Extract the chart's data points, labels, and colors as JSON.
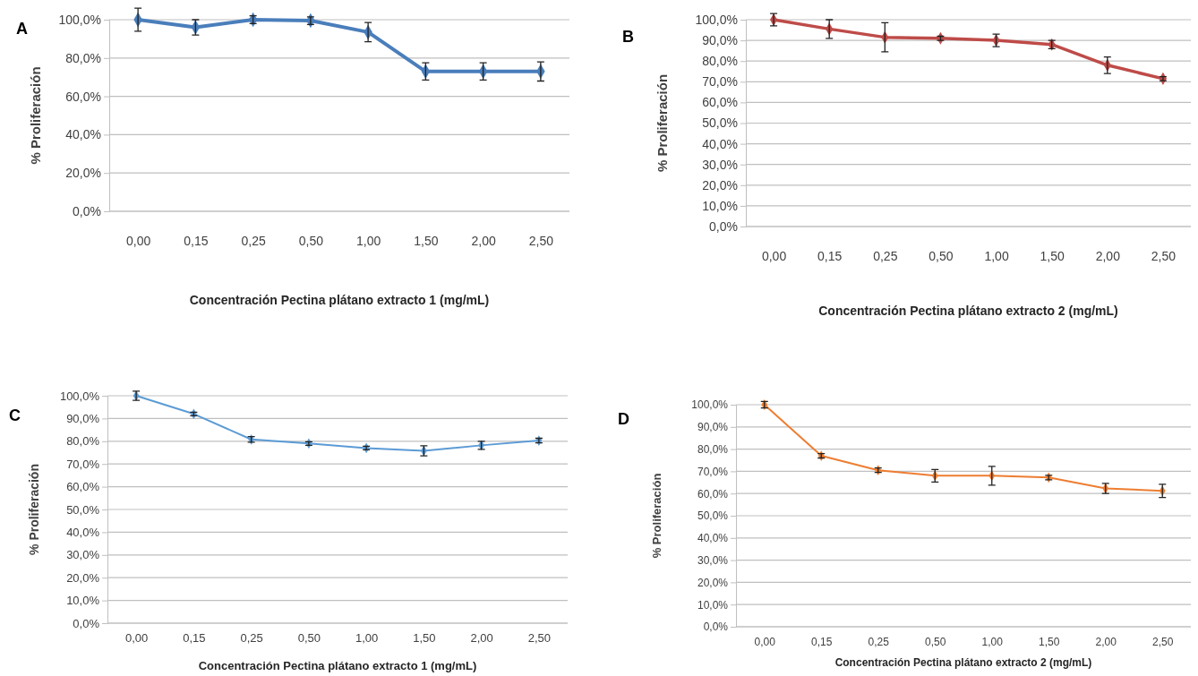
{
  "chart_data": [
    {
      "type": "line",
      "title": "A",
      "xlabel": "Concentración Pectina plátano  extracto 1 (mg/mL)",
      "ylabel": "% Proliferación",
      "categories": [
        "0,00",
        "0,15",
        "0,25",
        "0,50",
        "1,00",
        "1,50",
        "2,00",
        "2,50"
      ],
      "series": [
        {
          "color": "#4a7ebb",
          "values": [
            100,
            96,
            100,
            99.5,
            93.5,
            73,
            73,
            73
          ],
          "errors": [
            6,
            4,
            2,
            2,
            5,
            4.5,
            4.5,
            5
          ]
        }
      ],
      "ylim": [
        0,
        100
      ],
      "yticks": [
        {
          "value": 0,
          "label": "0,0%"
        },
        {
          "value": 20,
          "label": "20,0%"
        },
        {
          "value": 40,
          "label": "40,0%"
        },
        {
          "value": 60,
          "label": "60,0%"
        },
        {
          "value": 80,
          "label": "80,0%"
        },
        {
          "value": 100,
          "label": "100,0%"
        }
      ],
      "grid": "y",
      "marker": "diamond",
      "line_style": "solid"
    },
    {
      "type": "line",
      "title": "B",
      "xlabel": "Concentración Pectina plátano  extracto 2 (mg/mL)",
      "ylabel": "% Proliferación",
      "categories": [
        "0,00",
        "0,15",
        "0,25",
        "0,50",
        "1,00",
        "1,50",
        "2,00",
        "2,50"
      ],
      "series": [
        {
          "color": "#be4b48",
          "values": [
            100,
            95.5,
            91.5,
            91,
            90,
            88,
            78,
            71.5
          ],
          "errors": [
            3,
            4.5,
            7,
            1,
            3,
            2,
            4,
            1
          ]
        }
      ],
      "ylim": [
        0,
        100
      ],
      "yticks": [
        {
          "value": 0,
          "label": "0,0%"
        },
        {
          "value": 10,
          "label": "10,0%"
        },
        {
          "value": 20,
          "label": "20,0%"
        },
        {
          "value": 30,
          "label": "30,0%"
        },
        {
          "value": 40,
          "label": "40,0%"
        },
        {
          "value": 50,
          "label": "50,0%"
        },
        {
          "value": 60,
          "label": "60,0%"
        },
        {
          "value": 70,
          "label": "70,0%"
        },
        {
          "value": 80,
          "label": "80,0%"
        },
        {
          "value": 90,
          "label": "90,0%"
        },
        {
          "value": 100,
          "label": "100,0%"
        }
      ],
      "grid": "y",
      "marker": "diamond",
      "line_style": "solid"
    },
    {
      "type": "line",
      "title": "C",
      "xlabel": "Concentración  Pectina plátano  extracto 1 (mg/mL)",
      "ylabel": "% Proliferación",
      "categories": [
        "0,00",
        "0,15",
        "0,25",
        "0,50",
        "1,00",
        "1,50",
        "2,00",
        "2,50"
      ],
      "series": [
        {
          "color": "#5b9bd5",
          "values": [
            100,
            92,
            80.8,
            79,
            77,
            75.8,
            78.2,
            80.3
          ],
          "errors": [
            2,
            0.8,
            1.2,
            0.8,
            0.8,
            2.2,
            1.8,
            1
          ]
        }
      ],
      "ylim": [
        0,
        100
      ],
      "yticks": [
        {
          "value": 0,
          "label": "0,0%"
        },
        {
          "value": 10,
          "label": "10,0%"
        },
        {
          "value": 20,
          "label": "20,0%"
        },
        {
          "value": 30,
          "label": "30,0%"
        },
        {
          "value": 40,
          "label": "40,0%"
        },
        {
          "value": 50,
          "label": "50,0%"
        },
        {
          "value": 60,
          "label": "60,0%"
        },
        {
          "value": 70,
          "label": "70,0%"
        },
        {
          "value": 80,
          "label": "80,0%"
        },
        {
          "value": 90,
          "label": "90,0%"
        },
        {
          "value": 100,
          "label": "100,0%"
        }
      ],
      "grid": "y",
      "marker": "diamond",
      "line_style": "solid"
    },
    {
      "type": "line",
      "title": "D",
      "xlabel": "Concentración  Pectina plátano  extracto 2 (mg/mL)",
      "ylabel": "% Proliferación",
      "categories": [
        "0,00",
        "0,15",
        "0,25",
        "0,50",
        "1,00",
        "1,50",
        "2,00",
        "2,50"
      ],
      "series": [
        {
          "color": "#ed7d31",
          "values": [
            100,
            77,
            70.5,
            68,
            68,
            67.2,
            62.3,
            61.2
          ],
          "errors": [
            1.5,
            1,
            1,
            2.8,
            4.2,
            1,
            2.3,
            3
          ]
        }
      ],
      "ylim": [
        0,
        100
      ],
      "yticks": [
        {
          "value": 0,
          "label": "0,0%"
        },
        {
          "value": 10,
          "label": "10,0%"
        },
        {
          "value": 20,
          "label": "20,0%"
        },
        {
          "value": 30,
          "label": "30,0%"
        },
        {
          "value": 40,
          "label": "40,0%"
        },
        {
          "value": 50,
          "label": "50,0%"
        },
        {
          "value": 60,
          "label": "60,0%"
        },
        {
          "value": 70,
          "label": "70,0%"
        },
        {
          "value": 80,
          "label": "80,0%"
        },
        {
          "value": 90,
          "label": "90,0%"
        },
        {
          "value": 100,
          "label": "100,0%"
        }
      ],
      "grid": "y",
      "marker": "diamond",
      "line_style": "solid"
    }
  ]
}
